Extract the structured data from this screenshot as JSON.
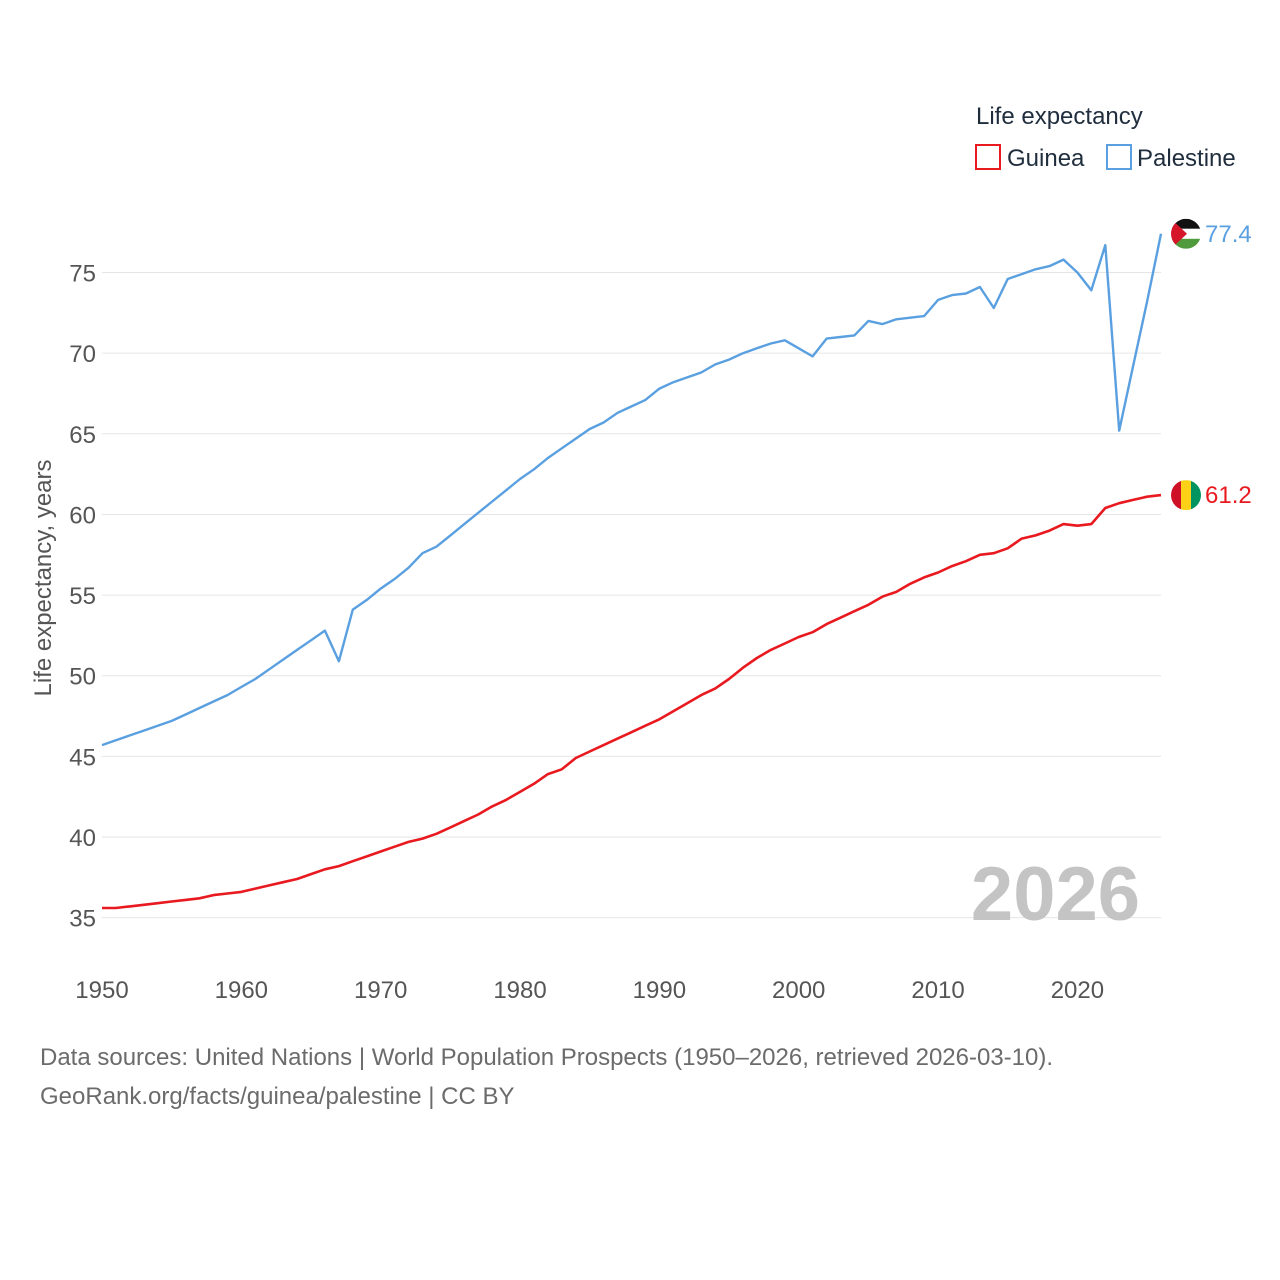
{
  "chart_data": {
    "type": "line",
    "title": "",
    "xlabel": "",
    "ylabel": "Life expectancy, years",
    "xlim": [
      1950,
      2026
    ],
    "ylim": [
      32.5,
      79
    ],
    "x_ticks": [
      1950,
      1960,
      1970,
      1980,
      1990,
      2000,
      2010,
      2020
    ],
    "y_ticks": [
      35,
      40,
      45,
      50,
      55,
      60,
      65,
      70,
      75
    ],
    "grid": true,
    "legend": {
      "title": "Life expectancy",
      "placement": "top-right"
    },
    "highlight_year": "2026",
    "x": [
      1950,
      1951,
      1952,
      1953,
      1954,
      1955,
      1956,
      1957,
      1958,
      1959,
      1960,
      1961,
      1962,
      1963,
      1964,
      1965,
      1966,
      1967,
      1968,
      1969,
      1970,
      1971,
      1972,
      1973,
      1974,
      1975,
      1976,
      1977,
      1978,
      1979,
      1980,
      1981,
      1982,
      1983,
      1984,
      1985,
      1986,
      1987,
      1988,
      1989,
      1990,
      1991,
      1992,
      1993,
      1994,
      1995,
      1996,
      1997,
      1998,
      1999,
      2000,
      2001,
      2002,
      2003,
      2004,
      2005,
      2006,
      2007,
      2008,
      2009,
      2010,
      2011,
      2012,
      2013,
      2014,
      2015,
      2016,
      2017,
      2018,
      2019,
      2020,
      2021,
      2022,
      2023,
      2024,
      2025,
      2026
    ],
    "series": [
      {
        "name": "Guinea",
        "color": "#e8191f",
        "end_value": "61.2",
        "flag": "guinea-flag",
        "values": [
          35.6,
          35.6,
          35.7,
          35.8,
          35.9,
          36.0,
          36.1,
          36.2,
          36.4,
          36.5,
          36.6,
          36.8,
          37.0,
          37.2,
          37.4,
          37.7,
          38.0,
          38.2,
          38.5,
          38.8,
          39.1,
          39.4,
          39.7,
          39.9,
          40.2,
          40.6,
          41.0,
          41.4,
          41.9,
          42.3,
          42.8,
          43.3,
          43.9,
          44.2,
          44.9,
          45.3,
          45.7,
          46.1,
          46.5,
          46.9,
          47.3,
          47.8,
          48.3,
          48.8,
          49.2,
          49.8,
          50.5,
          51.1,
          51.6,
          52.0,
          52.4,
          52.7,
          53.2,
          53.6,
          54.0,
          54.4,
          54.9,
          55.2,
          55.7,
          56.1,
          56.4,
          56.8,
          57.1,
          57.5,
          57.6,
          57.9,
          58.5,
          58.7,
          59.0,
          59.4,
          59.3,
          59.4,
          60.4,
          60.7,
          60.9,
          61.1,
          61.2
        ]
      },
      {
        "name": "Palestine",
        "color": "#5aa0e0",
        "end_value": "77.4",
        "flag": "palestine-flag",
        "values": [
          45.7,
          46.0,
          46.3,
          46.6,
          46.9,
          47.2,
          47.6,
          48.0,
          48.4,
          48.8,
          49.3,
          49.8,
          50.4,
          51.0,
          51.6,
          52.2,
          52.8,
          50.9,
          54.1,
          54.7,
          55.4,
          56.0,
          56.7,
          57.6,
          58.0,
          58.7,
          59.4,
          60.1,
          60.8,
          61.5,
          62.2,
          62.8,
          63.5,
          64.1,
          64.7,
          65.3,
          65.7,
          66.3,
          66.7,
          67.1,
          67.8,
          68.2,
          68.5,
          68.8,
          69.3,
          69.6,
          70.0,
          70.3,
          70.6,
          70.8,
          70.3,
          69.8,
          70.9,
          71.0,
          71.1,
          72.0,
          71.8,
          72.1,
          72.2,
          72.3,
          73.3,
          73.6,
          73.7,
          74.1,
          72.8,
          74.6,
          74.9,
          75.2,
          75.4,
          75.8,
          75.0,
          73.9,
          76.7,
          65.2,
          69.2,
          73.2,
          77.4
        ]
      }
    ]
  },
  "footer": {
    "source_line": "Data sources: United Nations | World Population Prospects (1950–2026, retrieved 2026-03-10).",
    "url_line": "GeoRank.org/facts/guinea/palestine | CC BY"
  }
}
